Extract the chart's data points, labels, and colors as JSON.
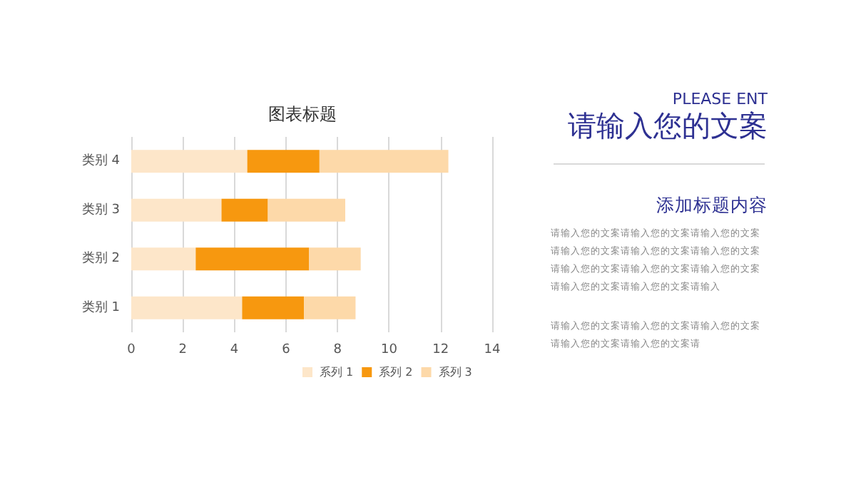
{
  "chart_data": {
    "type": "bar",
    "orientation": "horizontal",
    "stacked": true,
    "title": "图表标题",
    "categories": [
      "类别 4",
      "类别 3",
      "类别 2",
      "类别 1"
    ],
    "series": [
      {
        "name": "系列 1",
        "color": "#fde6c9",
        "values": [
          4.5,
          3.5,
          2.5,
          4.3
        ]
      },
      {
        "name": "系列 2",
        "color": "#f7980f",
        "values": [
          2.8,
          1.8,
          4.4,
          2.4
        ]
      },
      {
        "name": "系列 3",
        "color": "#fdd9a9",
        "values": [
          5.0,
          3.0,
          2.0,
          2.0
        ]
      }
    ],
    "xlim": [
      0,
      14
    ],
    "xticks": [
      0,
      2,
      4,
      6,
      8,
      10,
      12,
      14
    ],
    "grid": "x",
    "legend": "bottom",
    "annotations": [
      "PLEASE ENT",
      "请输入您的文案",
      "添加标题内容",
      "请输入您的文案请输入您的文案请输入您的文案请输入您的文案请输入您的文案请输入您的文案请输入您的文案请输入您的文案请输入您的文案请输入您的文案请输入您的文案请输入",
      "请输入您的文案请输入您的文案请输入您的文案请输入您的文案请输入您的文案请"
    ]
  }
}
